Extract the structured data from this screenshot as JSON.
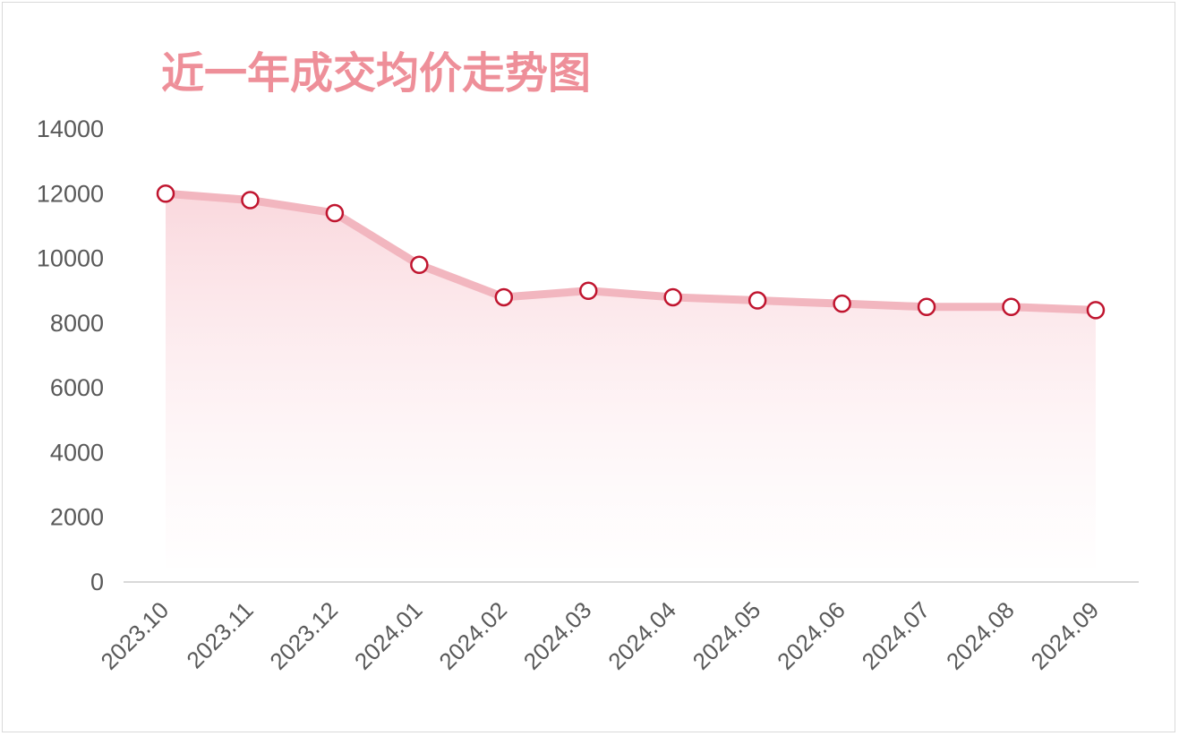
{
  "chart_data": {
    "type": "area",
    "title": "近一年成交均价走势图",
    "categories": [
      "2023.10",
      "2023.11",
      "2023.12",
      "2024.01",
      "2024.02",
      "2024.03",
      "2024.04",
      "2024.05",
      "2024.06",
      "2024.07",
      "2024.08",
      "2024.09"
    ],
    "series": [
      {
        "values": [
          12000,
          11800,
          11400,
          9800,
          8800,
          9000,
          8800,
          8700,
          8600,
          8500,
          8500,
          8400
        ]
      }
    ],
    "ylim": [
      0,
      14000
    ],
    "yticks": [
      "0",
      "2000",
      "4000",
      "6000",
      "8000",
      "10000",
      "12000",
      "14000"
    ],
    "grid": false,
    "legend": "none",
    "colors": {
      "line": "#f2b6bf",
      "fill_top": "#f7c3cb",
      "marker_edge": "#c0152f",
      "marker_fill": "#ffffff",
      "title": "#ee8f99",
      "axis": "#d9d9d9"
    }
  }
}
